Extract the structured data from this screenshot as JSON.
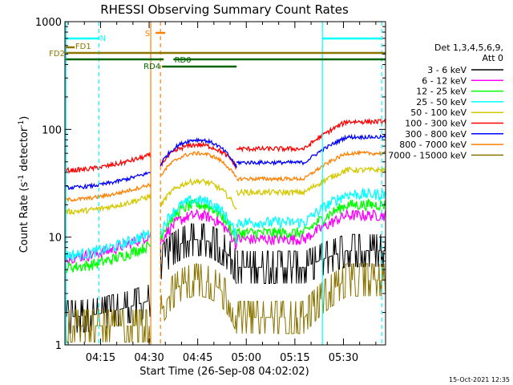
{
  "chart_data": {
    "type": "line",
    "title": "RHESSI Observing Summary Count Rates",
    "xlabel": "Start Time (26-Sep-08 04:02:02)",
    "ylabel": "Count Rate (s⁻¹ detector⁻¹)",
    "ylabel_main": "Count Rate (s",
    "ylabel_sup1": "-1",
    "ylabel_mid": " detector",
    "ylabel_sup2": "-1",
    "ylabel_end": ")",
    "y_scale": "log",
    "ylim": [
      1,
      1000
    ],
    "xlim_minutes": [
      4.0,
      103.0
    ],
    "y_ticks": [
      {
        "value": 1,
        "label": "1"
      },
      {
        "value": 10,
        "label": "10"
      },
      {
        "value": 100,
        "label": "100"
      },
      {
        "value": 1000,
        "label": "1000"
      }
    ],
    "x_ticks": [
      {
        "minute": 15,
        "label": "04:15"
      },
      {
        "minute": 30,
        "label": "04:30"
      },
      {
        "minute": 45,
        "label": "04:45"
      },
      {
        "minute": 60,
        "label": "05:00"
      },
      {
        "minute": 75,
        "label": "05:15"
      },
      {
        "minute": 90,
        "label": "05:30"
      }
    ],
    "legend_header": [
      "Det 1,3,4,5,6,9,",
      "Att 0"
    ],
    "legend_placement": "right",
    "timestamp": "15-Oct-2021 12:35",
    "series": [
      {
        "name": "3 - 6 keV",
        "color": "#000000",
        "level": [
          2.6,
          9.5,
          7.5
        ]
      },
      {
        "name": "6 - 12 keV",
        "color": "#ff00ff",
        "level": [
          10.5,
          16,
          16
        ]
      },
      {
        "name": "12 - 25 keV",
        "color": "#00ff00",
        "level": [
          8.5,
          20,
          20
        ]
      },
      {
        "name": "25 - 50 keV",
        "color": "#00ffff",
        "level": [
          11,
          22,
          25
        ]
      },
      {
        "name": "50 - 100 keV",
        "color": "#d4c800",
        "level": [
          24,
          33,
          42
        ]
      },
      {
        "name": "100 - 300 keV",
        "color": "#ff0000",
        "level": [
          58,
          72,
          118
        ]
      },
      {
        "name": "300 - 800 keV",
        "color": "#0000ff",
        "level": [
          40,
          80,
          85
        ]
      },
      {
        "name": "800 - 7000 keV",
        "color": "#ff8000",
        "level": [
          31,
          60,
          60
        ]
      },
      {
        "name": "7000 - 15000 keV",
        "color": "#8b7500",
        "level": [
          1.5,
          4,
          4
        ]
      }
    ],
    "annotations": [
      {
        "label": "N",
        "color": "#00ffff"
      },
      {
        "label": "S",
        "color": "#ff8000"
      },
      {
        "label": "FD1",
        "color": "#8b7500"
      },
      {
        "label": "FD2",
        "color": "#8b7500"
      },
      {
        "label": "RD0",
        "color": "#006400"
      },
      {
        "label": "RD4",
        "color": "#006400"
      }
    ]
  }
}
